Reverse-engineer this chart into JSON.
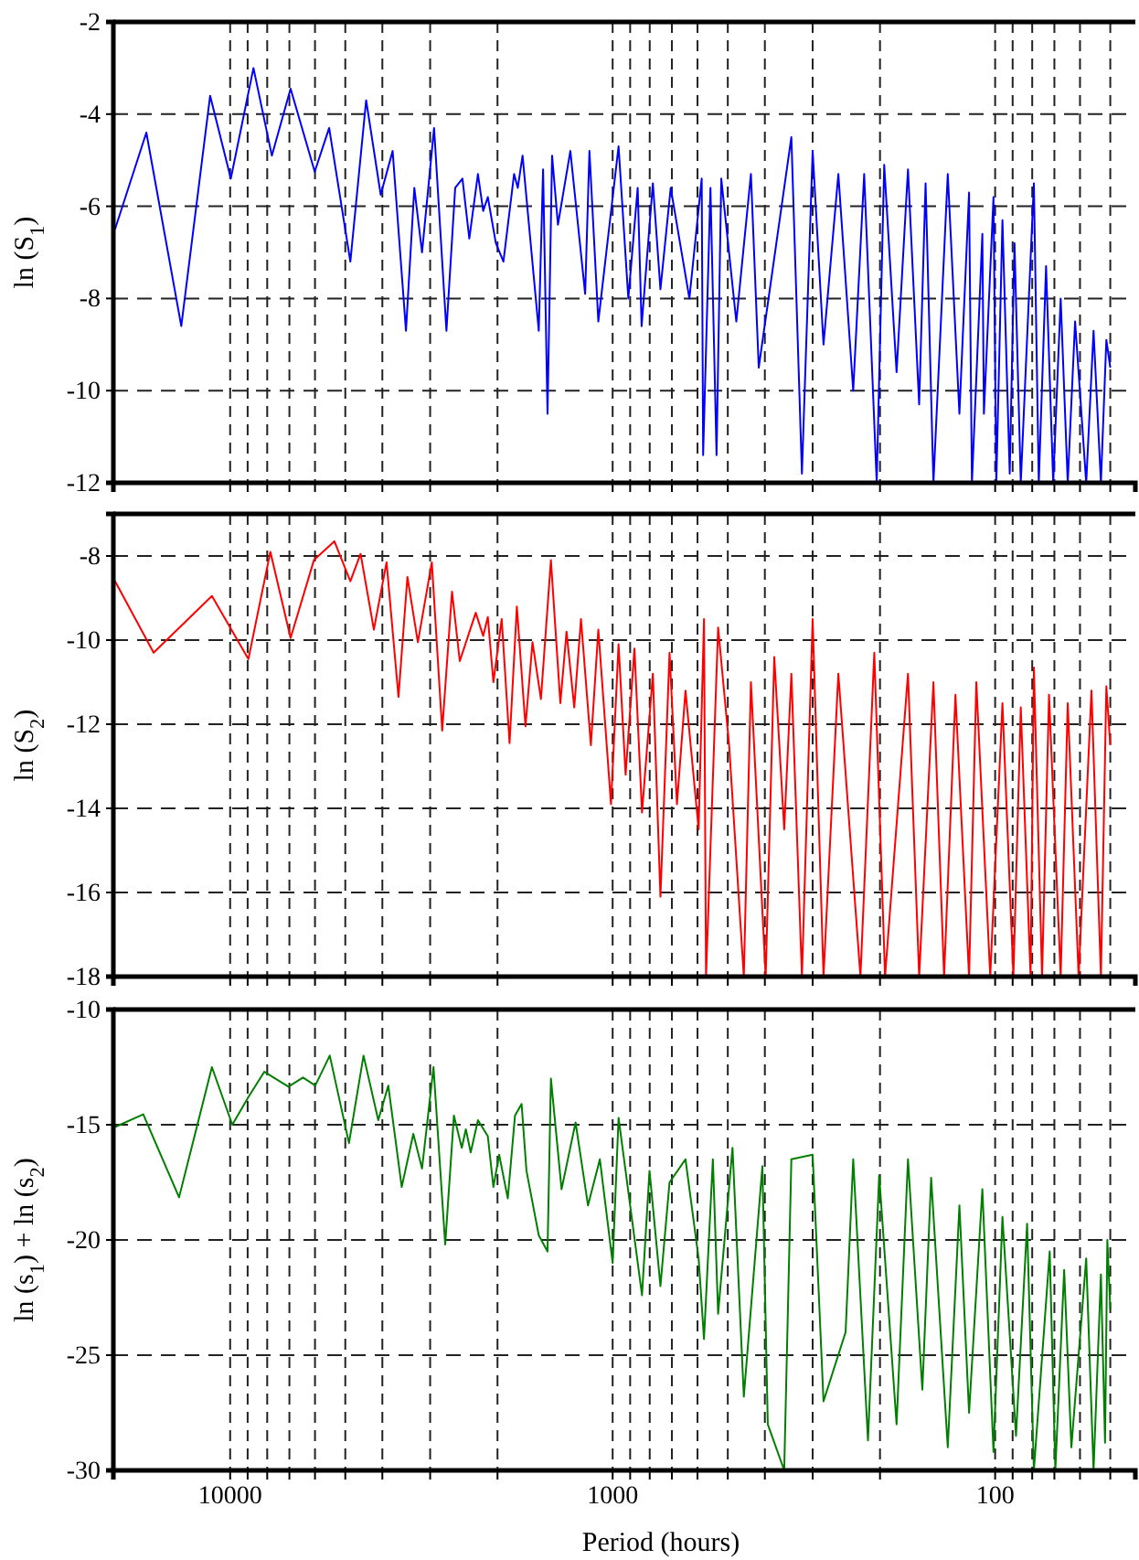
{
  "chart_data": [
    {
      "type": "line",
      "log": "x",
      "ylabel": "ln (S$_{1}$)",
      "tick_labels": "y",
      "grid": true,
      "xlim": [
        20200,
        43
      ],
      "ylim": [
        -12,
        -2
      ],
      "yticks": [
        -12,
        -10,
        -8,
        -6,
        -4,
        -2
      ],
      "xticks": [
        10000,
        {
          "value": 9000,
          "label": null
        },
        {
          "value": 8000,
          "label": null
        },
        {
          "value": 7000,
          "label": null
        },
        {
          "value": 6000,
          "label": null
        },
        {
          "value": 5000,
          "label": null
        },
        {
          "value": 4000,
          "label": null
        },
        {
          "value": 3000,
          "label": null
        },
        {
          "value": 2000,
          "label": null
        },
        1000,
        {
          "value": 900,
          "label": null
        },
        {
          "value": 800,
          "label": null
        },
        {
          "value": 700,
          "label": null
        },
        {
          "value": 600,
          "label": null
        },
        {
          "value": 500,
          "label": null
        },
        {
          "value": 400,
          "label": null
        },
        {
          "value": 300,
          "label": null
        },
        {
          "value": 200,
          "label": null
        },
        100,
        {
          "value": 90,
          "label": null
        },
        {
          "value": 80,
          "label": null
        },
        {
          "value": 70,
          "label": null
        },
        {
          "value": 60,
          "label": null
        },
        {
          "value": 50,
          "label": null
        }
      ],
      "series": [
        {
          "color": "#0000ff",
          "x": [
            20000,
            16560,
            13420,
            11280,
            9960,
            8690,
            7780,
            6950,
            6010,
            5510,
            4850,
            4410,
            4040,
            3760,
            3470,
            3300,
            3150,
            2930,
            2720,
            2580,
            2470,
            2370,
            2250,
            2180,
            2120,
            2020,
            1930,
            1810,
            1770,
            1720,
            1560,
            1520,
            1480,
            1440,
            1390,
            1290,
            1180,
            1150,
            1090,
            965,
            910,
            860,
            840,
            785,
            750,
            705,
            630,
            585,
            580,
            555,
            535,
            520,
            475,
            435,
            415,
            341,
            320,
            300,
            281,
            257,
            235,
            220,
            204,
            195,
            181,
            169,
            158,
            152,
            145,
            133,
            124,
            117,
            115,
            108,
            107,
            101,
            99.3,
            95.7,
            91.6,
            89,
            85.7,
            79.2,
            76.9,
            73.6,
            70.5,
            67.4,
            64.6,
            61.8,
            57.8,
            55.3,
            52.9,
            51.2,
            50
          ],
          "values": [
            -6.5,
            -4.4,
            -8.6,
            -3.6,
            -5.4,
            -3.0,
            -4.9,
            -3.45,
            -5.25,
            -4.3,
            -7.2,
            -3.7,
            -5.75,
            -4.8,
            -8.7,
            -5.6,
            -7.0,
            -4.3,
            -8.7,
            -5.6,
            -5.4,
            -6.7,
            -5.3,
            -6.1,
            -5.8,
            -6.8,
            -7.2,
            -5.3,
            -5.6,
            -4.9,
            -8.7,
            -5.2,
            -10.5,
            -4.9,
            -6.4,
            -4.8,
            -7.9,
            -4.8,
            -8.5,
            -4.7,
            -8.0,
            -5.6,
            -8.6,
            -5.5,
            -7.8,
            -5.6,
            -8.0,
            -5.4,
            -11.4,
            -5.6,
            -11.4,
            -5.4,
            -8.5,
            -5.3,
            -9.5,
            -4.5,
            -11.8,
            -4.8,
            -9.0,
            -5.3,
            -10.0,
            -5.3,
            -12,
            -5.1,
            -9.6,
            -5.2,
            -10.3,
            -5.5,
            -12,
            -5.3,
            -10.5,
            -5.7,
            -12,
            -6.6,
            -10.5,
            -5.8,
            -12,
            -6.3,
            -11.8,
            -6.8,
            -12,
            -5.5,
            -12,
            -7.3,
            -12,
            -8.0,
            -12,
            -8.5,
            -12,
            -8.7,
            -12,
            -8.9,
            -9.5
          ]
        }
      ]
    },
    {
      "type": "line",
      "log": "x",
      "ylabel": "ln (S$_{2}$)",
      "tick_labels": "y",
      "grid": true,
      "xlim": [
        20200,
        43
      ],
      "ylim": [
        -18,
        -7
      ],
      "yticks": [
        -18,
        -16,
        -14,
        -12,
        -10,
        -8
      ],
      "xticks": [
        10000,
        {
          "value": 9000,
          "label": null
        },
        {
          "value": 8000,
          "label": null
        },
        {
          "value": 7000,
          "label": null
        },
        {
          "value": 6000,
          "label": null
        },
        {
          "value": 5000,
          "label": null
        },
        {
          "value": 4000,
          "label": null
        },
        {
          "value": 3000,
          "label": null
        },
        {
          "value": 2000,
          "label": null
        },
        1000,
        {
          "value": 900,
          "label": null
        },
        {
          "value": 800,
          "label": null
        },
        {
          "value": 700,
          "label": null
        },
        {
          "value": 600,
          "label": null
        },
        {
          "value": 500,
          "label": null
        },
        {
          "value": 400,
          "label": null
        },
        {
          "value": 300,
          "label": null
        },
        {
          "value": 200,
          "label": null
        },
        100,
        {
          "value": 90,
          "label": null
        },
        {
          "value": 80,
          "label": null
        },
        {
          "value": 70,
          "label": null
        },
        {
          "value": 60,
          "label": null
        },
        {
          "value": 50,
          "label": null
        }
      ],
      "series": [
        {
          "color": "#ff0000",
          "x": [
            20000,
            15850,
            11160,
            8960,
            7850,
            6950,
            6040,
            5340,
            4850,
            4560,
            4210,
            3900,
            3630,
            3440,
            3230,
            2970,
            2790,
            2630,
            2510,
            2280,
            2180,
            2120,
            2050,
            1950,
            1860,
            1780,
            1690,
            1620,
            1540,
            1450,
            1370,
            1320,
            1260,
            1210,
            1140,
            1090,
            1010,
            965,
            925,
            877,
            838,
            785,
            750,
            710,
            679,
            645,
            596,
            577,
            570,
            530,
            496,
            454,
            435,
            398,
            378,
            356,
            341,
            320,
            300,
            281,
            257,
            225,
            207,
            194,
            169,
            158,
            145,
            136,
            127,
            117,
            112,
            103,
            95.7,
            89.6,
            85.7,
            80.8,
            79.2,
            75.4,
            72.3,
            67.4,
            64.6,
            60.5,
            56,
            52.9,
            51.2,
            50
          ],
          "values": [
            -8.6,
            -10.3,
            -8.95,
            -10.45,
            -7.9,
            -9.95,
            -8.1,
            -7.65,
            -8.6,
            -7.95,
            -9.75,
            -8.15,
            -11.35,
            -8.5,
            -10.05,
            -8.15,
            -12.15,
            -8.85,
            -10.5,
            -9.35,
            -9.9,
            -9.45,
            -11.0,
            -9.5,
            -12.45,
            -9.2,
            -12.05,
            -10.05,
            -11.4,
            -8.1,
            -11.5,
            -9.8,
            -11.6,
            -9.5,
            -12.5,
            -9.75,
            -13.9,
            -10.1,
            -13.2,
            -10.2,
            -14.1,
            -10.8,
            -16.1,
            -10.3,
            -13.9,
            -11.2,
            -14.5,
            -9.5,
            -18,
            -9.7,
            -12.5,
            -18,
            -11.0,
            -18,
            -10.4,
            -14.5,
            -10.8,
            -18,
            -9.5,
            -18,
            -10.8,
            -18,
            -10.3,
            -18,
            -10.8,
            -18,
            -11.0,
            -18,
            -11.3,
            -18,
            -11.0,
            -18,
            -11.5,
            -18,
            -11.6,
            -18,
            -10.65,
            -18,
            -11.3,
            -18,
            -11.5,
            -18,
            -11.2,
            -18,
            -11.1,
            -12.5
          ]
        }
      ]
    },
    {
      "type": "line",
      "log": "x",
      "ylabel": "ln (s$_{1}$) + ln (s$_{2}$)",
      "xlabel": "Period (hours)",
      "grid": true,
      "xlim": [
        20200,
        43
      ],
      "ylim": [
        -30,
        -10
      ],
      "yticks": [
        -30,
        -25,
        -20,
        -15,
        -10
      ],
      "xticks": [
        10000,
        {
          "value": 9000,
          "label": null
        },
        {
          "value": 8000,
          "label": null
        },
        {
          "value": 7000,
          "label": null
        },
        {
          "value": 6000,
          "label": null
        },
        {
          "value": 5000,
          "label": null
        },
        {
          "value": 4000,
          "label": null
        },
        {
          "value": 3000,
          "label": null
        },
        {
          "value": 2000,
          "label": null
        },
        1000,
        {
          "value": 900,
          "label": null
        },
        {
          "value": 800,
          "label": null
        },
        {
          "value": 700,
          "label": null
        },
        {
          "value": 600,
          "label": null
        },
        {
          "value": 500,
          "label": null
        },
        {
          "value": 400,
          "label": null
        },
        {
          "value": 300,
          "label": null
        },
        {
          "value": 200,
          "label": null
        },
        100,
        {
          "value": 90,
          "label": null
        },
        {
          "value": 80,
          "label": null
        },
        {
          "value": 70,
          "label": null
        },
        {
          "value": 60,
          "label": null
        },
        {
          "value": 50,
          "label": null
        }
      ],
      "series": [
        {
          "color": "#007f00",
          "x": [
            20000,
            16870,
            13600,
            11160,
            9870,
            8960,
            8140,
            7040,
            6450,
            5990,
            5490,
            4890,
            4480,
            4100,
            3860,
            3560,
            3320,
            3150,
            2940,
            2740,
            2600,
            2480,
            2420,
            2350,
            2250,
            2120,
            2050,
            1980,
            1880,
            1800,
            1730,
            1680,
            1560,
            1480,
            1450,
            1360,
            1250,
            1160,
            1080,
            1000,
            965,
            838,
            801,
            750,
            710,
            645,
            596,
            577,
            547,
            530,
            486,
            454,
            406,
            393,
            356,
            341,
            300,
            281,
            246,
            235,
            215,
            201,
            181,
            169,
            155,
            147,
            133,
            124,
            117,
            108,
            101,
            95.7,
            88.2,
            82.5,
            79.2,
            72,
            69.6,
            66,
            63.2,
            57.8,
            55.3,
            52.9,
            51.6,
            50.9,
            50
          ],
          "values": [
            -15.1,
            -14.55,
            -18.15,
            -12.5,
            -15.0,
            -13.8,
            -12.7,
            -13.35,
            -12.95,
            -13.3,
            -12.0,
            -15.8,
            -12.0,
            -14.8,
            -13.3,
            -17.7,
            -15.4,
            -16.9,
            -12.5,
            -20.2,
            -14.6,
            -16.0,
            -15.2,
            -16.2,
            -14.8,
            -15.5,
            -17.7,
            -16.3,
            -18.2,
            -14.6,
            -14.1,
            -17.0,
            -19.8,
            -20.5,
            -13.0,
            -17.8,
            -14.9,
            -18.5,
            -16.5,
            -21,
            -14.7,
            -22.4,
            -17.0,
            -22.0,
            -17.5,
            -16.5,
            -20.8,
            -24.3,
            -16.5,
            -23.2,
            -16.0,
            -26.8,
            -16.8,
            -28.0,
            -30,
            -16.5,
            -16.3,
            -27.0,
            -24.0,
            -16.5,
            -28.7,
            -17.2,
            -28.0,
            -16.5,
            -26.5,
            -17.3,
            -29,
            -18.5,
            -27.5,
            -17.8,
            -29.2,
            -19.0,
            -28.5,
            -19.3,
            -30,
            -20.5,
            -30,
            -21.3,
            -29,
            -20.8,
            -30,
            -21.5,
            -28.8,
            -20.0,
            -23
          ]
        }
      ]
    }
  ]
}
